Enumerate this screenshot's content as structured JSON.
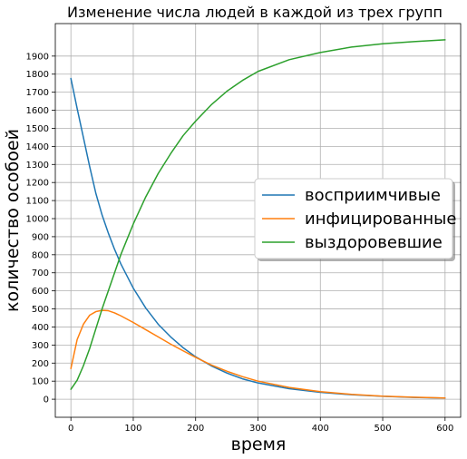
{
  "chart_data": {
    "type": "line",
    "title": "Изменение числа людей в каждой из трех групп",
    "xlabel": "время",
    "ylabel": "количество особоей",
    "xlim": [
      -25,
      625
    ],
    "ylim": [
      -100,
      2080
    ],
    "x_ticks": [
      0,
      100,
      200,
      300,
      400,
      500,
      600
    ],
    "y_ticks": [
      0,
      100,
      200,
      300,
      400,
      500,
      600,
      700,
      800,
      900,
      1000,
      1100,
      1200,
      1300,
      1400,
      1500,
      1600,
      1700,
      1800,
      1900
    ],
    "grid": true,
    "legend_position": "center-right",
    "x": [
      0,
      10,
      20,
      30,
      40,
      50,
      60,
      70,
      80,
      100,
      120,
      140,
      160,
      180,
      200,
      225,
      250,
      275,
      300,
      350,
      400,
      450,
      500,
      550,
      600
    ],
    "series": [
      {
        "name": "восприимчивые",
        "color": "#1f77b4",
        "values": [
          1776,
          1610,
          1450,
          1290,
          1140,
          1020,
          920,
          830,
          750,
          615,
          505,
          415,
          345,
          285,
          235,
          185,
          145,
          113,
          90,
          58,
          38,
          25,
          16,
          10,
          6
        ]
      },
      {
        "name": "инфицированные",
        "color": "#ff7f0e",
        "values": [
          170,
          330,
          415,
          465,
          485,
          492,
          490,
          478,
          462,
          425,
          385,
          345,
          305,
          268,
          232,
          190,
          155,
          125,
          100,
          65,
          42,
          27,
          17,
          11,
          7
        ]
      },
      {
        "name": "выздоровевшие",
        "color": "#2ca02c",
        "values": [
          55,
          105,
          185,
          280,
          390,
          500,
          600,
          700,
          800,
          970,
          1120,
          1250,
          1360,
          1460,
          1540,
          1630,
          1705,
          1765,
          1815,
          1880,
          1920,
          1950,
          1968,
          1980,
          1990
        ]
      }
    ]
  }
}
